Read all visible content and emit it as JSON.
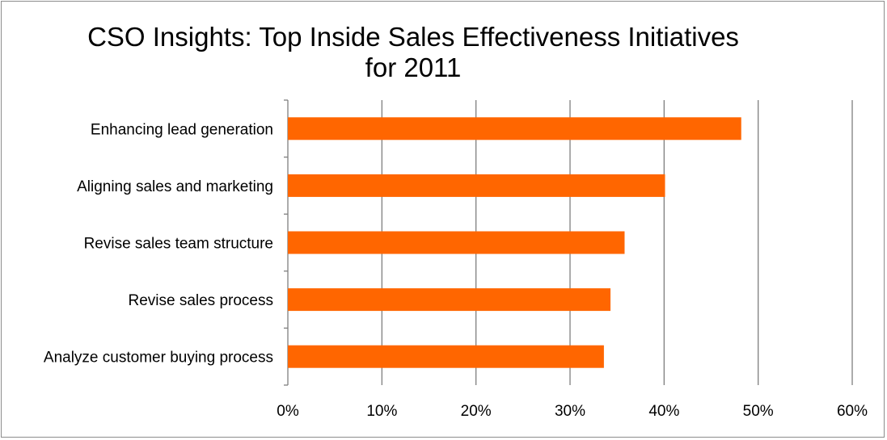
{
  "chart_data": {
    "type": "bar",
    "orientation": "horizontal",
    "title_lines": [
      "CSO Insights: Top Inside Sales Effectiveness Initiatives",
      "for 2011"
    ],
    "categories": [
      "Enhancing lead generation",
      "Aligning sales and marketing",
      "Revise sales team structure",
      "Revise sales process",
      "Analyze customer buying process"
    ],
    "values": [
      48.2,
      40.1,
      35.8,
      34.3,
      33.6
    ],
    "xlim": [
      0,
      60
    ],
    "xticks": [
      0,
      10,
      20,
      30,
      40,
      50,
      60
    ],
    "xtick_labels": [
      "0%",
      "10%",
      "20%",
      "30%",
      "40%",
      "50%",
      "60%"
    ],
    "xlabel": "",
    "ylabel": "",
    "grid": "vertical",
    "legend": "none",
    "bar_color": "#ff6600",
    "gridline_color": "#7f7f7f"
  }
}
